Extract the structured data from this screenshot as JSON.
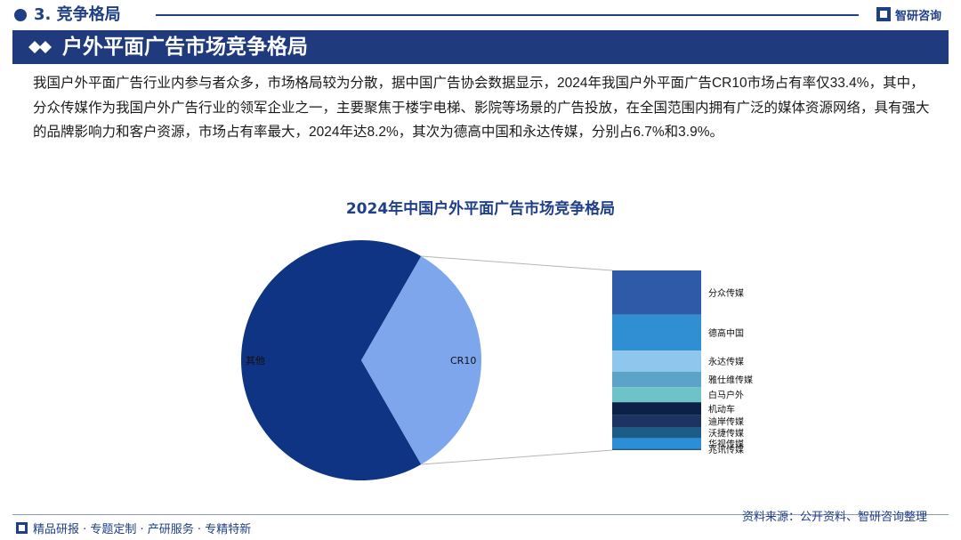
{
  "header": {
    "section_title": "3. 竞争格局",
    "brand": "智研咨询"
  },
  "banner": {
    "title": "户外平面广告市场竞争格局"
  },
  "paragraph": "我国户外平面广告行业内参与者众多，市场格局较为分散，据中国广告协会数据显示，2024年我国户外平面广告CR10市场占有率仅33.4%，其中，分众传媒作为我国户外广告行业的领军企业之一，主要聚焦于楼宇电梯、影院等场景的广告投放，在全国范围内拥有广泛的媒体资源网络，具有强大的品牌影响力和客户资源，市场占有率最大，2024年达8.2%，其次为德高中国和永达传媒，分别占6.7%和3.9%。",
  "chart_data": {
    "type": "pie",
    "title": "2024年中国户外平面广告市场竞争格局",
    "slices": [
      {
        "label": "CR10",
        "value": 33.4,
        "color": "#7ea6ec"
      },
      {
        "label": "其他",
        "value": 66.6,
        "color": "#0f3483"
      }
    ],
    "breakdown": {
      "of": "CR10",
      "chart": "stacked-bar",
      "items": [
        {
          "label": "分众传媒",
          "value": 8.2,
          "color": "#2f5aa8"
        },
        {
          "label": "德高中国",
          "value": 6.7,
          "color": "#2f8fd2"
        },
        {
          "label": "永达传媒",
          "value": 3.9,
          "color": "#8ec6ee"
        },
        {
          "label": "雅仕维传媒",
          "value": 2.9,
          "color": "#5ba3c8"
        },
        {
          "label": "白马户外",
          "value": 2.8,
          "color": "#6dc3c8"
        },
        {
          "label": "机动车",
          "value": 2.4,
          "color": "#0c2147"
        },
        {
          "label": "迪岸传媒",
          "value": 2.3,
          "color": "#1d3463"
        },
        {
          "label": "沃捷传媒",
          "value": 2.0,
          "color": "#1c5c88"
        },
        {
          "label": "华视传媒",
          "value": 1.9,
          "color": "#2a8fd8"
        },
        {
          "label": "兆讯传媒",
          "value": 0.3,
          "color": "#1f5f8a"
        }
      ]
    }
  },
  "footer": {
    "left": "精品研报 · 专题定制 · 产研服务 · 专精特新",
    "source": "资料来源：公开资料、智研咨询整理"
  }
}
